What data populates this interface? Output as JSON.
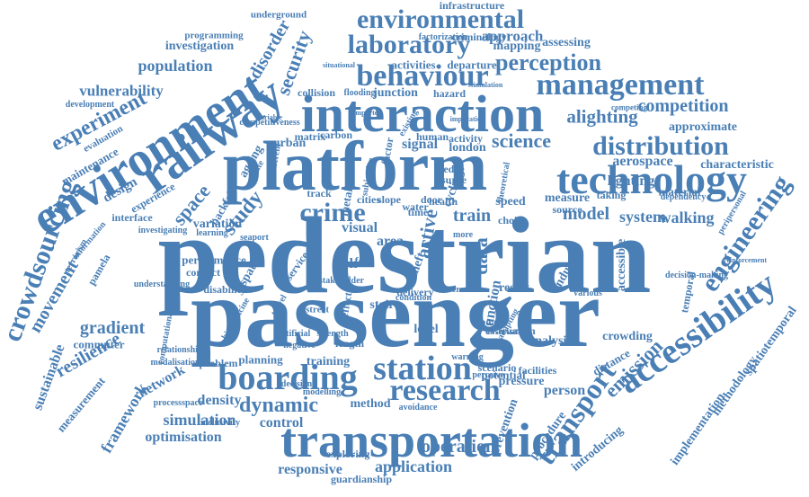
{
  "cloud": {
    "color": "#4a7fb5",
    "words": [
      "pedestrian",
      "passenger",
      "platform",
      "interaction",
      "railway",
      "environment",
      "transportation",
      "technology",
      "station",
      "boarding",
      "research",
      "accessibility",
      "crowdsourcing",
      "environmental",
      "behaviour",
      "management",
      "laboratory",
      "distribution",
      "engineering",
      "transport",
      "perception",
      "experiment",
      "security",
      "disorder",
      "science",
      "crime",
      "dynamic",
      "emission",
      "model",
      "train",
      "study",
      "space",
      "simulation",
      "operation",
      "application",
      "optimisation",
      "responsive",
      "method",
      "control",
      "density",
      "resilience",
      "gradient",
      "movement",
      "sustainable",
      "framework",
      "network",
      "measurement",
      "commuter",
      "population",
      "vulnerability",
      "investigation",
      "programming",
      "infrastructure",
      "underground",
      "approach",
      "mapping",
      "assessing",
      "factorization",
      "criminology",
      "competition",
      "alighting",
      "approximate",
      "characteristic",
      "aerospace",
      "lighting",
      "walking",
      "system",
      "prevention",
      "procedure",
      "introducing",
      "implementation",
      "methodology",
      "spatiotemporal",
      "crowding",
      "analysis",
      "person",
      "exploring",
      "guardianship",
      "planning",
      "training",
      "problem",
      "urban",
      "signal",
      "health",
      "speed",
      "data",
      "risk",
      "stair",
      "result",
      "function",
      "industry",
      "accessible",
      "material",
      "measure",
      "source",
      "choice",
      "water",
      "door",
      "slope",
      "cities",
      "track",
      "metal",
      "factor",
      "matrix",
      "carbon",
      "human",
      "activity",
      "london",
      "hazard",
      "junction",
      "flooding",
      "collision",
      "activities",
      "departure",
      "situational",
      "competing",
      "dependency",
      "stakeholder",
      "visual",
      "area",
      "fear",
      "theft",
      "level",
      "cycling",
      "edge",
      "surge",
      "active",
      "time",
      "more",
      "taking",
      "facilities",
      "potential",
      "scenario",
      "pressure",
      "avoidance",
      "warning",
      "evacuation",
      "distance",
      "temporal",
      "performance",
      "conflict",
      "spatial",
      "pamela",
      "interface",
      "variation",
      "seaport",
      "backfall",
      "ageing",
      "design",
      "experience",
      "maintenance",
      "evaluation",
      "development",
      "competitiveness",
      "terrorism",
      "information",
      "understanding",
      "disability",
      "service",
      "effect",
      "street",
      "length",
      "negative",
      "artificial",
      "strength",
      "decision",
      "modelling",
      "inclusivity",
      "processspace",
      "computational",
      "modalisations",
      "relationship",
      "observation",
      "decision-making",
      "peripersonal",
      "reinforcement",
      "bioinedicine",
      "stimulation",
      "implication",
      "imported",
      "variable",
      "theoretical",
      "subjective",
      "different",
      "existing",
      "evaluate",
      "investigating",
      "learning",
      "adapting",
      "delivery",
      "board",
      "crowd",
      "various",
      "perceive",
      "condition",
      "travel",
      "public"
    ]
  }
}
